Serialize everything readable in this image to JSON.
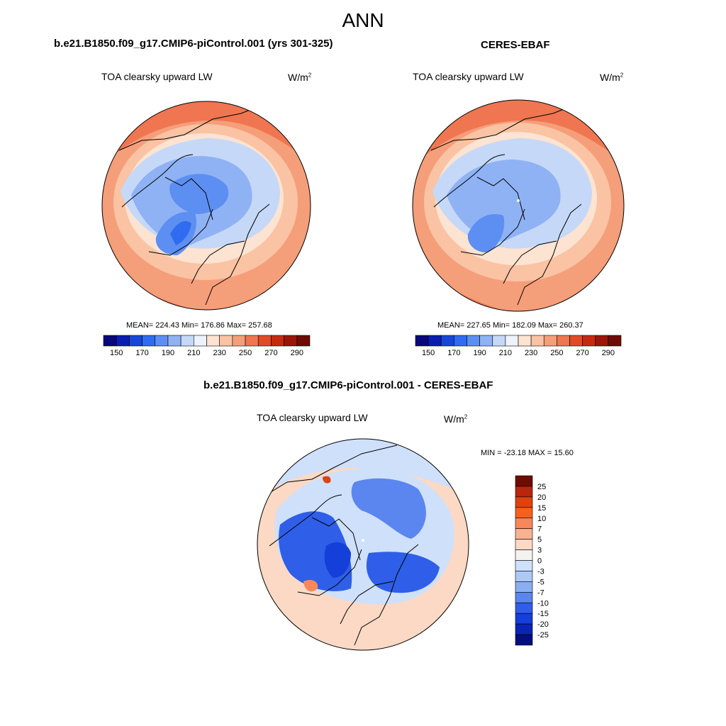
{
  "figure": {
    "title": "ANN"
  },
  "panels": [
    {
      "id": "model",
      "case_title": "b.e21.B1850.f09_g17.CMIP6-piControl.001 (yrs 301-325)",
      "variable": "TOA clearsky upward LW",
      "units_base": "W/m",
      "units_exp": "2",
      "stats": "MEAN= 224.43  Min= 176.86  Max= 257.68",
      "colorbar_ticks": [
        "150",
        "170",
        "190",
        "210",
        "230",
        "250",
        "270",
        "290"
      ]
    },
    {
      "id": "obs",
      "case_title": "CERES-EBAF",
      "variable": "TOA clearsky upward LW",
      "units_base": "W/m",
      "units_exp": "2",
      "stats": "MEAN= 227.65  Min= 182.09  Max= 260.37",
      "colorbar_ticks": [
        "150",
        "170",
        "190",
        "210",
        "230",
        "250",
        "270",
        "290"
      ]
    },
    {
      "id": "diff",
      "case_title": "b.e21.B1850.f09_g17.CMIP6-piControl.001 - CERES-EBAF",
      "variable": "TOA clearsky upward LW",
      "units_base": "W/m",
      "units_exp": "2",
      "stats": "MIN = -23.18 MAX =  15.60",
      "colorbar_ticks": [
        "25",
        "20",
        "15",
        "10",
        "7",
        "5",
        "3",
        "0",
        "-3",
        "-5",
        "-7",
        "-10",
        "-15",
        "-20",
        "-25"
      ]
    }
  ],
  "colors": {
    "abs_palette": [
      "#08087a",
      "#0a1fb0",
      "#1747d8",
      "#2f6cf0",
      "#5d8ff2",
      "#8fb2f4",
      "#c5d8f8",
      "#eef3fb",
      "#fde3d1",
      "#f9c3a4",
      "#f59e7a",
      "#ef7650",
      "#e04b26",
      "#c52b10",
      "#9a1608",
      "#6e0c04"
    ],
    "diff_palette": [
      "#6e0c04",
      "#b8260d",
      "#e0410f",
      "#f5601c",
      "#f6885c",
      "#f9b28f",
      "#fbd9c4",
      "#f4f2f0",
      "#cfe0fb",
      "#adc8f6",
      "#8aaef2",
      "#5b86ef",
      "#2f5fe8",
      "#143fd8",
      "#0a24b8",
      "#060d7e"
    ],
    "map_base": "#f7c0a2",
    "coastline": "#000000"
  }
}
